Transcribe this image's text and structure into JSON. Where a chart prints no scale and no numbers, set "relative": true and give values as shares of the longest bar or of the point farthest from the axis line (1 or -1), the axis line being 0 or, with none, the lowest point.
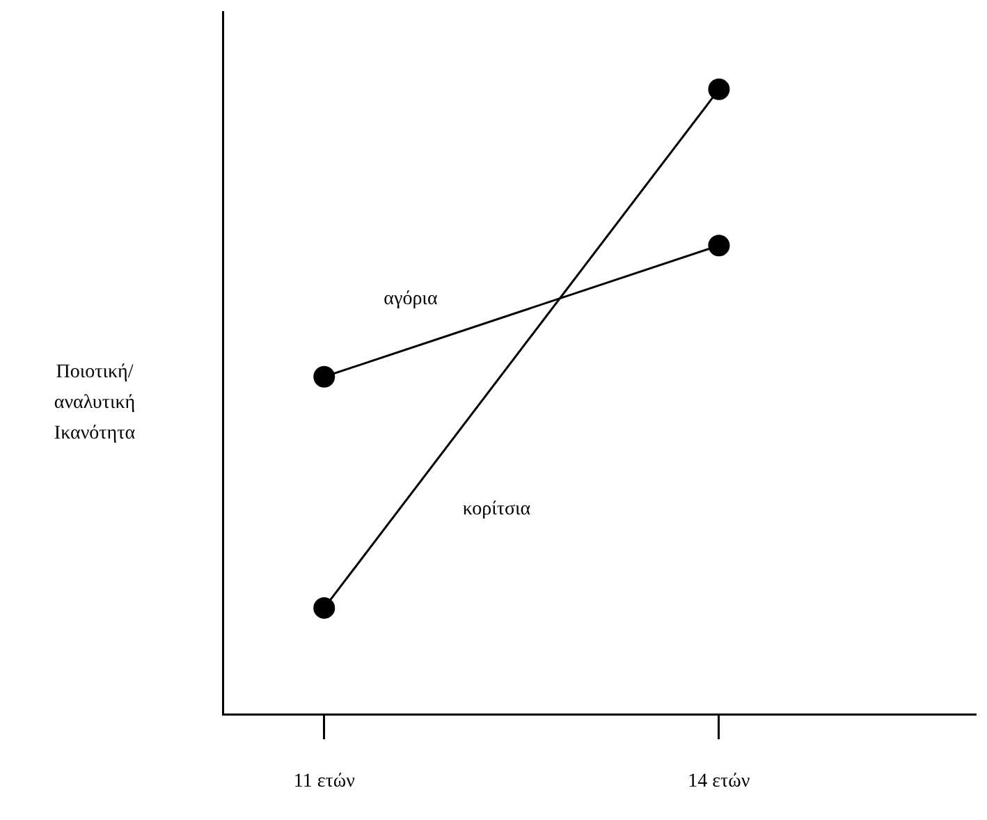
{
  "chart_data": {
    "type": "line",
    "relative": true,
    "ylabel": "Ποιοτική/ αναλυτική Ικανότητα",
    "categories": [
      "11 ετών",
      "14 ετών"
    ],
    "series": [
      {
        "name": "αγόρια",
        "color": "#000000",
        "values": [
          0.54,
          0.75
        ]
      },
      {
        "name": "κορίτσια",
        "color": "#000000",
        "values": [
          0.17,
          1
        ]
      }
    ],
    "marker": "circle",
    "line_style": "solid",
    "legend": false,
    "grid": false
  }
}
